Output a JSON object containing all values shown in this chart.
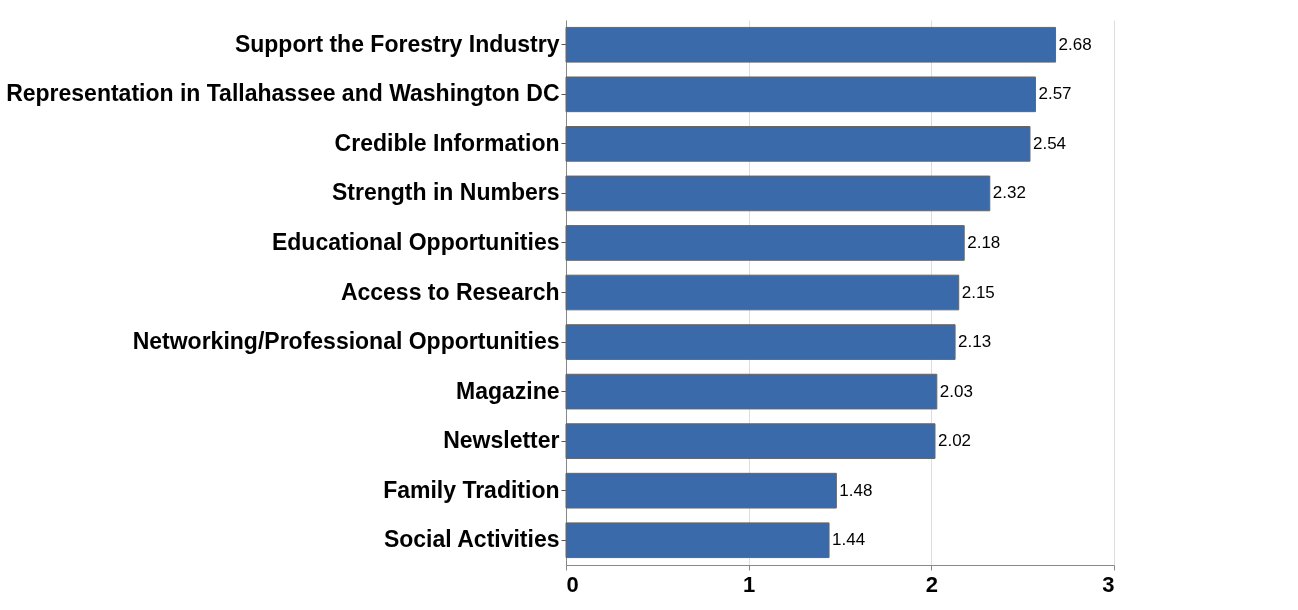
{
  "chart_data": {
    "type": "bar",
    "orientation": "horizontal",
    "categories": [
      "Support the Forestry Industry",
      "Representation in Tallahassee and Washington DC",
      "Credible Information",
      "Strength in Numbers",
      "Educational Opportunities",
      "Access to Research",
      "Networking/Professional Opportunities",
      "Magazine",
      "Newsletter",
      "Family Tradition",
      "Social Activities"
    ],
    "values": [
      2.68,
      2.57,
      2.54,
      2.32,
      2.18,
      2.15,
      2.13,
      2.03,
      2.02,
      1.48,
      1.44
    ],
    "color": "#3a6aaa",
    "xlim": [
      0,
      3
    ],
    "xticks": [
      {
        "value": 0,
        "label": "0"
      },
      {
        "value": 1,
        "label": "1"
      },
      {
        "value": 2,
        "label": "2"
      },
      {
        "value": 3,
        "label": "3"
      }
    ],
    "grid": "x",
    "data_labels": true
  }
}
